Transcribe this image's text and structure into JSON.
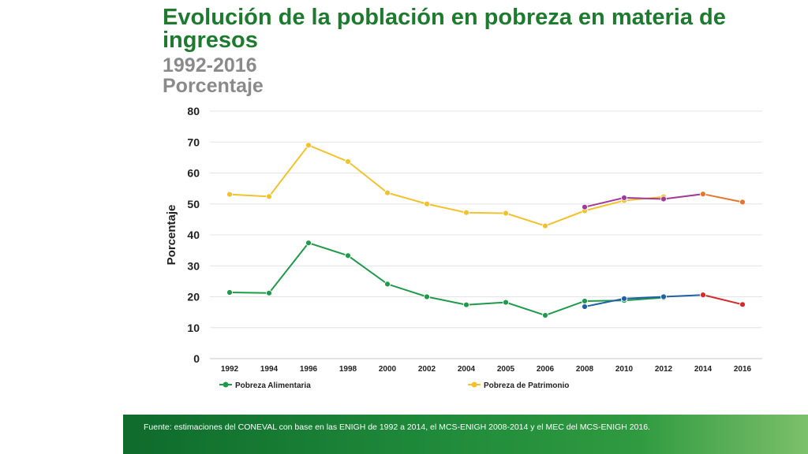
{
  "slide": {
    "title": "Evolución de la población en pobreza en materia de ingresos",
    "subtitle_years": "1992-2016",
    "subtitle_unit": "Porcentaje",
    "source": "Fuente: estimaciones del CONEVAL con base en las ENIGH de 1992 a 2014, el MCS-ENIGH 2008-2014 y el MEC del MCS-ENIGH 2016."
  },
  "chart_data": {
    "type": "line",
    "ylabel": "Porcentaje",
    "xlabel": "",
    "ylim": [
      0,
      80
    ],
    "yticks": [
      0,
      10,
      20,
      30,
      40,
      50,
      60,
      70,
      80
    ],
    "grid": true,
    "legend_position": "bottom",
    "categories": [
      "1992",
      "1994",
      "1996",
      "1998",
      "2000",
      "2002",
      "2004",
      "2005",
      "2006",
      "2008",
      "2010",
      "2012",
      "2014",
      "2016"
    ],
    "series": [
      {
        "name": "Pobreza Alimentaria",
        "color": "#1f9a4a",
        "x": [
          "1992",
          "1994",
          "1996",
          "1998",
          "2000",
          "2002",
          "2004",
          "2005",
          "2006",
          "2008",
          "2010",
          "2012"
        ],
        "values": [
          21.4,
          21.2,
          37.4,
          33.3,
          24.1,
          20.0,
          17.4,
          18.2,
          14.0,
          18.6,
          18.8,
          19.7
        ]
      },
      {
        "name": "Pobreza de Patrimonio",
        "color": "#f2c12e",
        "x": [
          "1992",
          "1994",
          "1996",
          "1998",
          "2000",
          "2002",
          "2004",
          "2005",
          "2006",
          "2008",
          "2010",
          "2012"
        ],
        "values": [
          53.1,
          52.4,
          69.0,
          63.7,
          53.6,
          50.0,
          47.2,
          47.0,
          42.9,
          47.8,
          51.1,
          52.3
        ]
      },
      {
        "color": "#1f5fa8",
        "x": [
          "2008",
          "2010",
          "2012",
          "2014"
        ],
        "values": [
          16.8,
          19.4,
          20.0,
          20.6
        ]
      },
      {
        "color": "#a23a9a",
        "x": [
          "2008",
          "2010",
          "2012",
          "2014"
        ],
        "values": [
          49.0,
          52.0,
          51.6,
          53.2
        ]
      },
      {
        "color": "#d42a2a",
        "x": [
          "2014",
          "2016"
        ],
        "values": [
          20.6,
          17.5
        ]
      },
      {
        "color": "#e6762b",
        "x": [
          "2014",
          "2016"
        ],
        "values": [
          53.2,
          50.6
        ]
      }
    ]
  }
}
